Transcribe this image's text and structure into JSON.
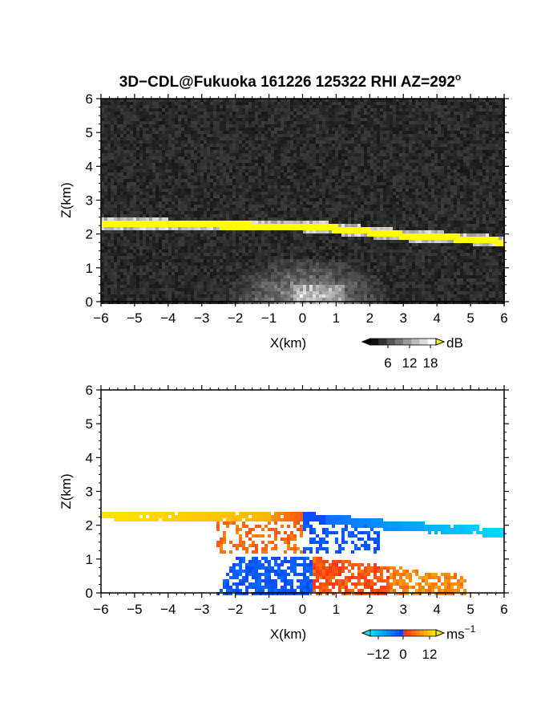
{
  "title": "3D−CDL@Fukuoka 161226 125322 RHI AZ=292",
  "title_degree": "o",
  "chart_data": [
    {
      "type": "heatmap",
      "panel": "reflectivity",
      "xlabel": "X(km)",
      "ylabel": "Z(km)",
      "xlim": [
        -6,
        6
      ],
      "ylim": [
        0,
        6
      ],
      "xticks": [
        "−6",
        "−5",
        "−4",
        "−3",
        "−2",
        "−1",
        "0",
        "1",
        "2",
        "3",
        "4",
        "5",
        "6"
      ],
      "yticks": [
        "0",
        "1",
        "2",
        "3",
        "4",
        "5",
        "6"
      ],
      "colorbar": {
        "unit": "dB",
        "ticks": [
          "6",
          "12",
          "18"
        ],
        "range": [
          0,
          21
        ]
      },
      "colors": {
        "background": "#1c1c1c",
        "high": "#ffff00",
        "mid": "#d0d0d0"
      },
      "features": [
        {
          "name": "layer",
          "x": [
            -6,
            -4,
            -2,
            0,
            1,
            2,
            3,
            4,
            5,
            6
          ],
          "z": [
            2.35,
            2.32,
            2.3,
            2.28,
            2.2,
            2.1,
            2.0,
            1.95,
            1.9,
            1.8
          ]
        },
        {
          "name": "near-range clutter",
          "x_range": [
            -2.2,
            4
          ],
          "z_range": [
            0,
            1.3
          ]
        }
      ]
    },
    {
      "type": "heatmap",
      "panel": "velocity",
      "xlabel": "X(km)",
      "ylabel": "Z(km)",
      "xlim": [
        -6,
        6
      ],
      "ylim": [
        0,
        6
      ],
      "xticks": [
        "−6",
        "−5",
        "−4",
        "−3",
        "−2",
        "−1",
        "0",
        "1",
        "2",
        "3",
        "4",
        "5",
        "6"
      ],
      "yticks": [
        "0",
        "1",
        "2",
        "3",
        "4",
        "5",
        "6"
      ],
      "colorbar": {
        "unit": "ms",
        "unit_exp": "−1",
        "ticks": [
          "−12",
          "0",
          "12"
        ],
        "range": [
          -18,
          18
        ]
      },
      "colors": {
        "negative": "#00e5ff",
        "near_zero_neg": "#0a3cff",
        "near_zero_pos": "#ff2a1a",
        "positive": "#ffee00"
      }
    }
  ]
}
